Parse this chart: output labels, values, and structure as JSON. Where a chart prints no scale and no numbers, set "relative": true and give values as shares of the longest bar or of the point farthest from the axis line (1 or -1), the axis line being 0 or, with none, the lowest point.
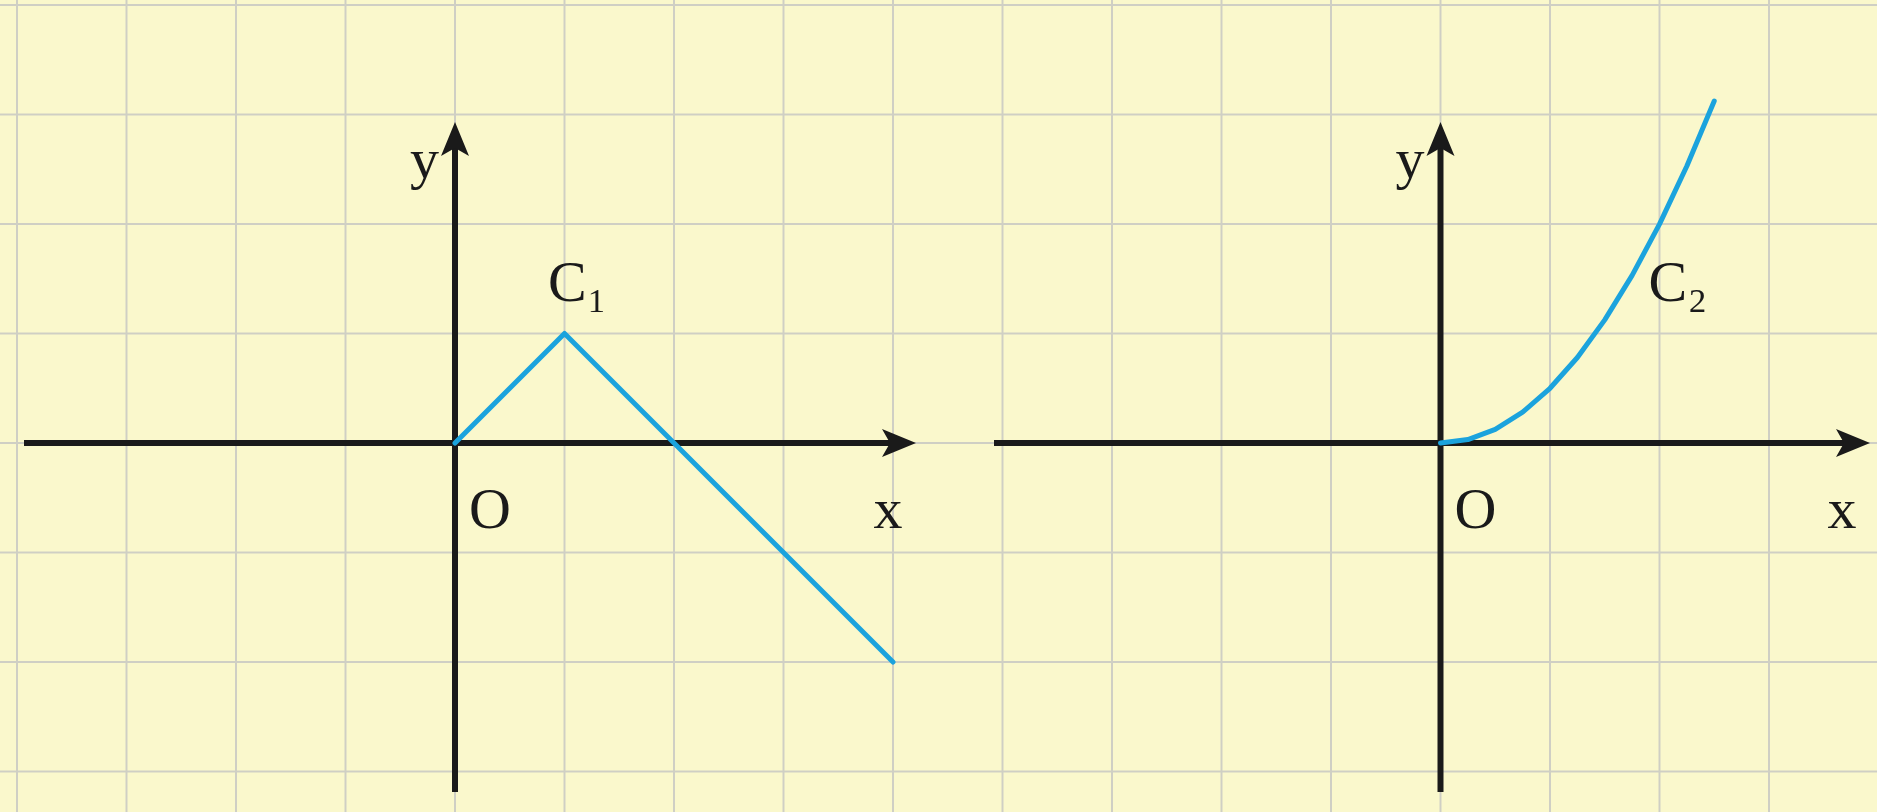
{
  "chart_data": [
    {
      "type": "line",
      "relative": true,
      "xlabel": "x",
      "ylabel": "y",
      "annotations": [
        "O"
      ],
      "grid": true,
      "legend": false,
      "categories": [
        null,
        null,
        null,
        null,
        null,
        null,
        null,
        null,
        null
      ],
      "series": [
        {
          "name": "C₁",
          "color": "#1ba3dd",
          "values": [
            null,
            null,
            null,
            null,
            0,
            0.5,
            0,
            -0.5,
            -1
          ]
        }
      ]
    },
    {
      "type": "line",
      "relative": true,
      "xlabel": "x",
      "ylabel": "y",
      "annotations": [
        "O"
      ],
      "grid": true,
      "legend": false,
      "categories": [
        null,
        null,
        null,
        null,
        null,
        null,
        null,
        null,
        null,
        null,
        null,
        null,
        null,
        null,
        null,
        null,
        null,
        null,
        null,
        null,
        null,
        null,
        null,
        null,
        null,
        null,
        null,
        null,
        null,
        null,
        null,
        null,
        null
      ],
      "series": [
        {
          "name": "C₂",
          "color": "#1ba3dd",
          "values": [
            null,
            null,
            null,
            null,
            null,
            null,
            null,
            null,
            null,
            null,
            null,
            null,
            null,
            null,
            null,
            null,
            0,
            0.01,
            0.04,
            0.09,
            0.16,
            0.25,
            0.36,
            0.49,
            0.64,
            0.81,
            1,
            null,
            null,
            null,
            null,
            null,
            null
          ]
        }
      ]
    }
  ]
}
